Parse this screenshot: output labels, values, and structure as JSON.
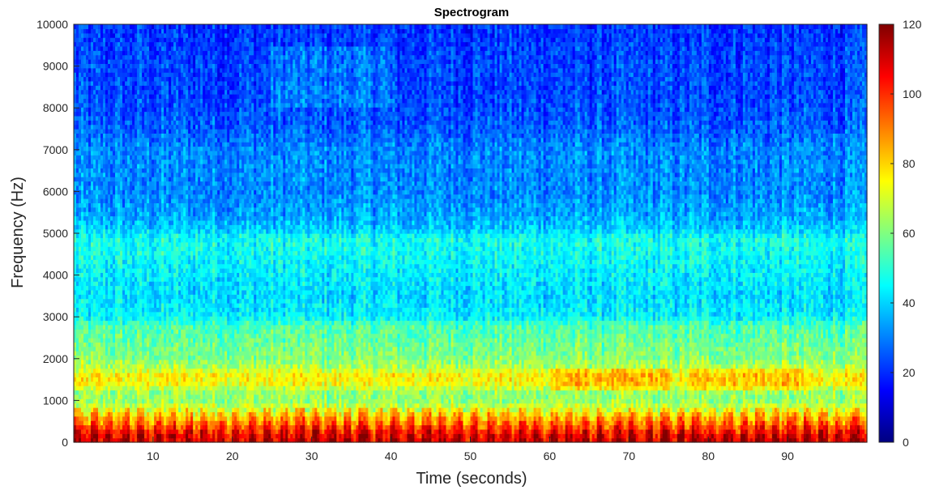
{
  "chart_data": {
    "type": "heatmap",
    "title": "Spectrogram",
    "xlabel": "Time (seconds)",
    "ylabel": "Frequency (Hz)",
    "xlim": [
      0,
      100
    ],
    "ylim": [
      0,
      10000
    ],
    "xticks": [
      10,
      20,
      30,
      40,
      50,
      60,
      70,
      80,
      90
    ],
    "yticks": [
      0,
      1000,
      2000,
      3000,
      4000,
      5000,
      6000,
      7000,
      8000,
      9000,
      10000
    ],
    "colorbar": {
      "range": [
        0,
        120
      ],
      "ticks": [
        0,
        20,
        40,
        60,
        80,
        100,
        120
      ],
      "colormap": "jet",
      "placement": "right"
    },
    "grid": false,
    "frequency_profile": {
      "frequencies_hz": [
        0,
        200,
        400,
        600,
        800,
        1000,
        1200,
        1400,
        1600,
        1800,
        2000,
        2400,
        2800,
        3000,
        3500,
        4000,
        4500,
        4900,
        5100,
        5500,
        6000,
        6500,
        7000,
        7500,
        8000,
        8500,
        9000,
        9500,
        10000
      ],
      "mean_level": [
        112,
        108,
        96,
        85,
        72,
        62,
        63,
        74,
        76,
        66,
        61,
        57,
        54,
        44,
        41,
        43,
        46,
        47,
        39,
        34,
        31,
        31,
        31,
        26,
        24,
        23,
        23,
        22,
        21
      ]
    },
    "time_modulation": {
      "period_seconds": 2.0,
      "depth": 14
    },
    "regions": [
      {
        "label": "",
        "t_range": [
          25,
          40
        ],
        "f_range": [
          8000,
          9500
        ],
        "delta": 6
      },
      {
        "label": "",
        "t_range": [
          60,
          75
        ],
        "f_range": [
          1200,
          1800
        ],
        "delta": 8
      },
      {
        "label": "",
        "t_range": [
          78,
          92
        ],
        "f_range": [
          1200,
          1800
        ],
        "delta": 7
      }
    ]
  }
}
